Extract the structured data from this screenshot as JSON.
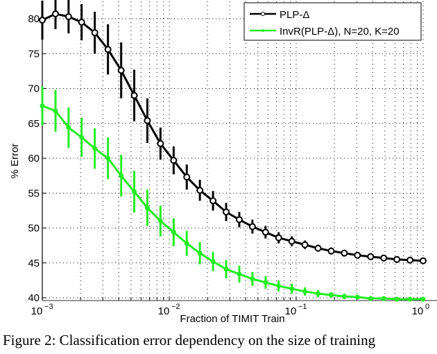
{
  "chart_data": {
    "type": "line",
    "title": "",
    "xlabel": "Fraction of TIMIT Train",
    "ylabel": "% Error",
    "xscale": "log",
    "xlim": [
      0.001,
      1
    ],
    "ylim": [
      39.5,
      82.5
    ],
    "grid": true,
    "legend_position": "upper right",
    "x_ticks": [
      0.001,
      0.01,
      0.1,
      1
    ],
    "x_tick_labels": [
      {
        "base": "10",
        "exp": "−3"
      },
      {
        "base": "10",
        "exp": "−2"
      },
      {
        "base": "10",
        "exp": "−1"
      },
      {
        "base": "10",
        "exp": "0"
      }
    ],
    "y_ticks": [
      40,
      45,
      50,
      55,
      60,
      65,
      70,
      75,
      80
    ],
    "x": [
      0.001,
      0.00127,
      0.00161,
      0.00204,
      0.00259,
      0.00329,
      0.00418,
      0.0053,
      0.00672,
      0.00853,
      0.01083,
      0.01374,
      0.01743,
      0.02212,
      0.02807,
      0.03562,
      0.0452,
      0.05736,
      0.07279,
      0.09237,
      0.1172,
      0.1487,
      0.1888,
      0.2395,
      0.3039,
      0.3857,
      0.4894,
      0.621,
      0.788,
      1.0
    ],
    "series": [
      {
        "name": "PLP-Δ",
        "color": "#000000",
        "marker": "circle",
        "values": [
          79.8,
          80.7,
          80.3,
          79.5,
          78.0,
          75.6,
          72.6,
          69.0,
          65.4,
          62.1,
          59.7,
          57.3,
          55.4,
          53.9,
          52.3,
          51.2,
          50.2,
          49.4,
          48.6,
          48.1,
          47.6,
          47.1,
          46.7,
          46.4,
          46.1,
          45.9,
          45.7,
          45.5,
          45.4,
          45.3
        ],
        "err": [
          2.8,
          2.2,
          2.4,
          2.6,
          3.0,
          3.6,
          4.0,
          3.7,
          3.2,
          2.3,
          2.0,
          1.8,
          1.5,
          1.4,
          1.3,
          1.1,
          1.0,
          0.9,
          0.8,
          0.7,
          0.6,
          0.5,
          0.5,
          0.4,
          0.3,
          0.3,
          0.3,
          0.2,
          0.2,
          0.2
        ]
      },
      {
        "name": "InvR(PLP-Δ), N=20, K=20",
        "color": "#22ee22",
        "marker": "star",
        "values": [
          67.5,
          66.8,
          64.4,
          63.0,
          61.4,
          60.0,
          57.5,
          55.2,
          52.9,
          51.0,
          49.4,
          47.8,
          46.4,
          45.2,
          44.1,
          43.4,
          42.7,
          42.2,
          41.7,
          41.3,
          40.9,
          40.6,
          40.4,
          40.2,
          40.1,
          39.9,
          39.9,
          39.8,
          39.8,
          39.8
        ],
        "err": [
          2.8,
          3.0,
          2.9,
          2.8,
          2.9,
          3.0,
          3.0,
          3.0,
          2.6,
          2.2,
          2.0,
          1.8,
          1.6,
          1.4,
          1.3,
          1.2,
          1.0,
          0.9,
          0.8,
          0.7,
          0.6,
          0.5,
          0.4,
          0.4,
          0.3,
          0.3,
          0.2,
          0.2,
          0.2,
          0.2
        ]
      }
    ]
  },
  "caption": "Figure 2: Classification error dependency on the size of training"
}
